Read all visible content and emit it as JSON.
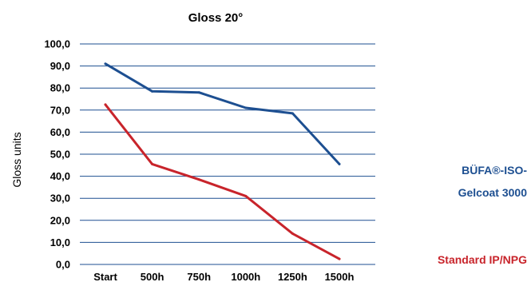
{
  "chart_data": {
    "type": "line",
    "title": "Gloss 20°",
    "xlabel": "",
    "ylabel": "Gloss units",
    "categories": [
      "Start",
      "500h",
      "750h",
      "1000h",
      "1250h",
      "1500h"
    ],
    "ylim": [
      0,
      100
    ],
    "yticks": [
      "0,0",
      "10,0",
      "20,0",
      "30,0",
      "40,0",
      "50,0",
      "60,0",
      "70,0",
      "80,0",
      "90,0",
      "100,0"
    ],
    "grid": true,
    "legend_position": "right",
    "series": [
      {
        "name_lines": [
          "BÜFA®-ISO-",
          "Gelcoat 3000"
        ],
        "color": "#1d4f91",
        "values": [
          91,
          78.5,
          78,
          71,
          68.5,
          45.5
        ]
      },
      {
        "name_lines": [
          "Standard IP/NPG"
        ],
        "color": "#c8242b",
        "values": [
          72.5,
          45.5,
          38.5,
          31,
          14,
          2.5
        ]
      }
    ]
  }
}
